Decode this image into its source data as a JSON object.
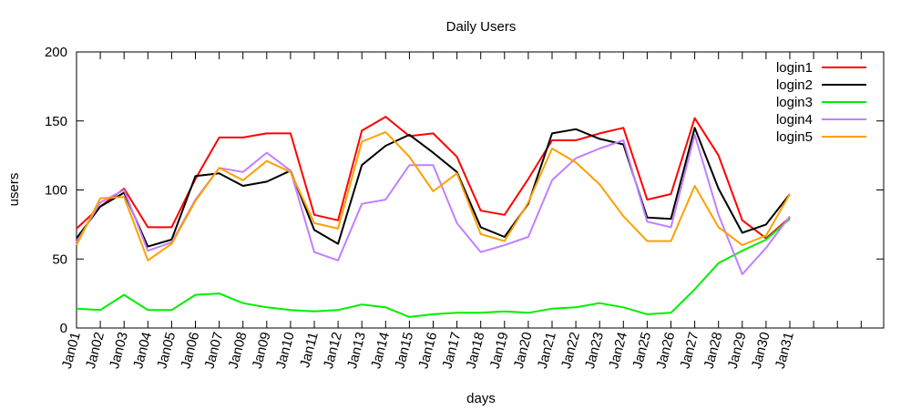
{
  "chart_data": {
    "type": "line",
    "title": "Daily Users",
    "xlabel": "days",
    "ylabel": "users",
    "ylim": [
      0,
      200
    ],
    "yticks": [
      "0",
      "50",
      "100",
      "150",
      "200"
    ],
    "legend_position": "top-right",
    "categories": [
      "Jan01",
      "Jan02",
      "Jan03",
      "Jan04",
      "Jan05",
      "Jan06",
      "Jan07",
      "Jan08",
      "Jan09",
      "Jan10",
      "Jan11",
      "Jan12",
      "Jan13",
      "Jan14",
      "Jan15",
      "Jan16",
      "Jan17",
      "Jan18",
      "Jan19",
      "Jan20",
      "Jan21",
      "Jan22",
      "Jan23",
      "Jan24",
      "Jan25",
      "Jan26",
      "Jan27",
      "Jan28",
      "Jan29",
      "Jan30",
      "Jan31"
    ],
    "series": [
      {
        "name": "login1",
        "color": "#ff0000",
        "values": [
          72,
          88,
          101,
          73,
          73,
          108,
          138,
          138,
          141,
          141,
          82,
          78,
          143,
          153,
          139,
          141,
          124,
          85,
          82,
          108,
          136,
          136,
          141,
          145,
          93,
          97,
          152,
          125,
          78,
          65,
          80
        ]
      },
      {
        "name": "login2",
        "color": "#000000",
        "values": [
          65,
          88,
          98,
          59,
          64,
          110,
          112,
          103,
          106,
          114,
          71,
          61,
          118,
          132,
          140,
          127,
          113,
          73,
          66,
          90,
          141,
          144,
          137,
          133,
          80,
          79,
          145,
          101,
          69,
          75,
          97
        ]
      },
      {
        "name": "login3",
        "color": "#00ee00",
        "values": [
          14,
          13,
          24,
          13,
          13,
          24,
          25,
          18,
          15,
          13,
          12,
          13,
          17,
          15,
          8,
          10,
          11,
          11,
          12,
          11,
          14,
          15,
          18,
          15,
          10,
          11,
          28,
          47,
          56,
          64,
          79
        ]
      },
      {
        "name": "login4",
        "color": "#c080ff",
        "values": [
          62,
          91,
          100,
          56,
          62,
          93,
          116,
          113,
          127,
          114,
          55,
          49,
          90,
          93,
          118,
          118,
          76,
          55,
          60,
          66,
          107,
          123,
          130,
          136,
          77,
          73,
          140,
          82,
          39,
          58,
          81
        ]
      },
      {
        "name": "login5",
        "color": "#ffa000",
        "values": [
          60,
          94,
          95,
          49,
          61,
          92,
          116,
          107,
          121,
          113,
          76,
          72,
          135,
          142,
          124,
          99,
          112,
          68,
          63,
          91,
          130,
          120,
          104,
          81,
          63,
          63,
          103,
          73,
          60,
          67,
          97
        ]
      }
    ]
  }
}
